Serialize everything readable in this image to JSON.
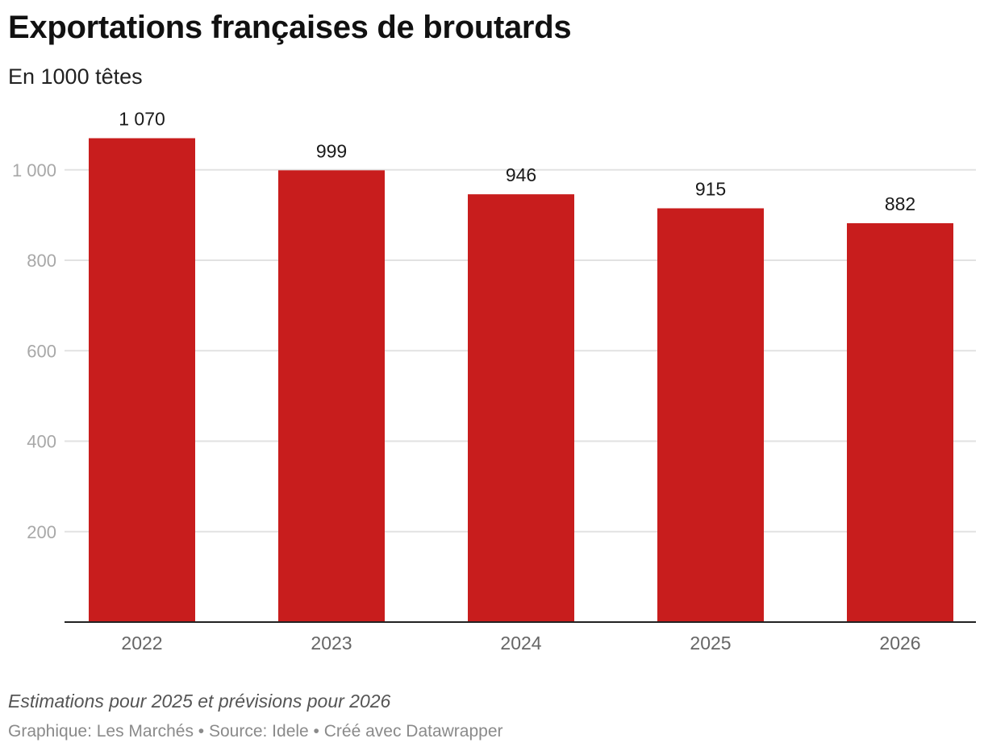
{
  "header": {
    "title": "Exportations françaises de broutards",
    "subtitle": "En 1000 têtes"
  },
  "footer": {
    "note": "Estimations pour 2025 et prévisions pour 2026",
    "credits": "Graphique: Les Marchés • Source: Idele • Créé avec Datawrapper"
  },
  "chart_data": {
    "type": "bar",
    "title": "Exportations françaises de broutards",
    "subtitle": "En 1000 têtes",
    "categories": [
      "2022",
      "2023",
      "2024",
      "2025",
      "2026"
    ],
    "values": [
      1070,
      999,
      946,
      915,
      882
    ],
    "value_labels": [
      "1 070",
      "999",
      "946",
      "915",
      "882"
    ],
    "y_ticks": [
      200,
      400,
      600,
      800,
      1000
    ],
    "y_tick_labels": [
      "200",
      "400",
      "600",
      "800",
      "1 000"
    ],
    "ylim": [
      0,
      1100
    ],
    "grid": true,
    "bar_color": "#c81d1d"
  }
}
